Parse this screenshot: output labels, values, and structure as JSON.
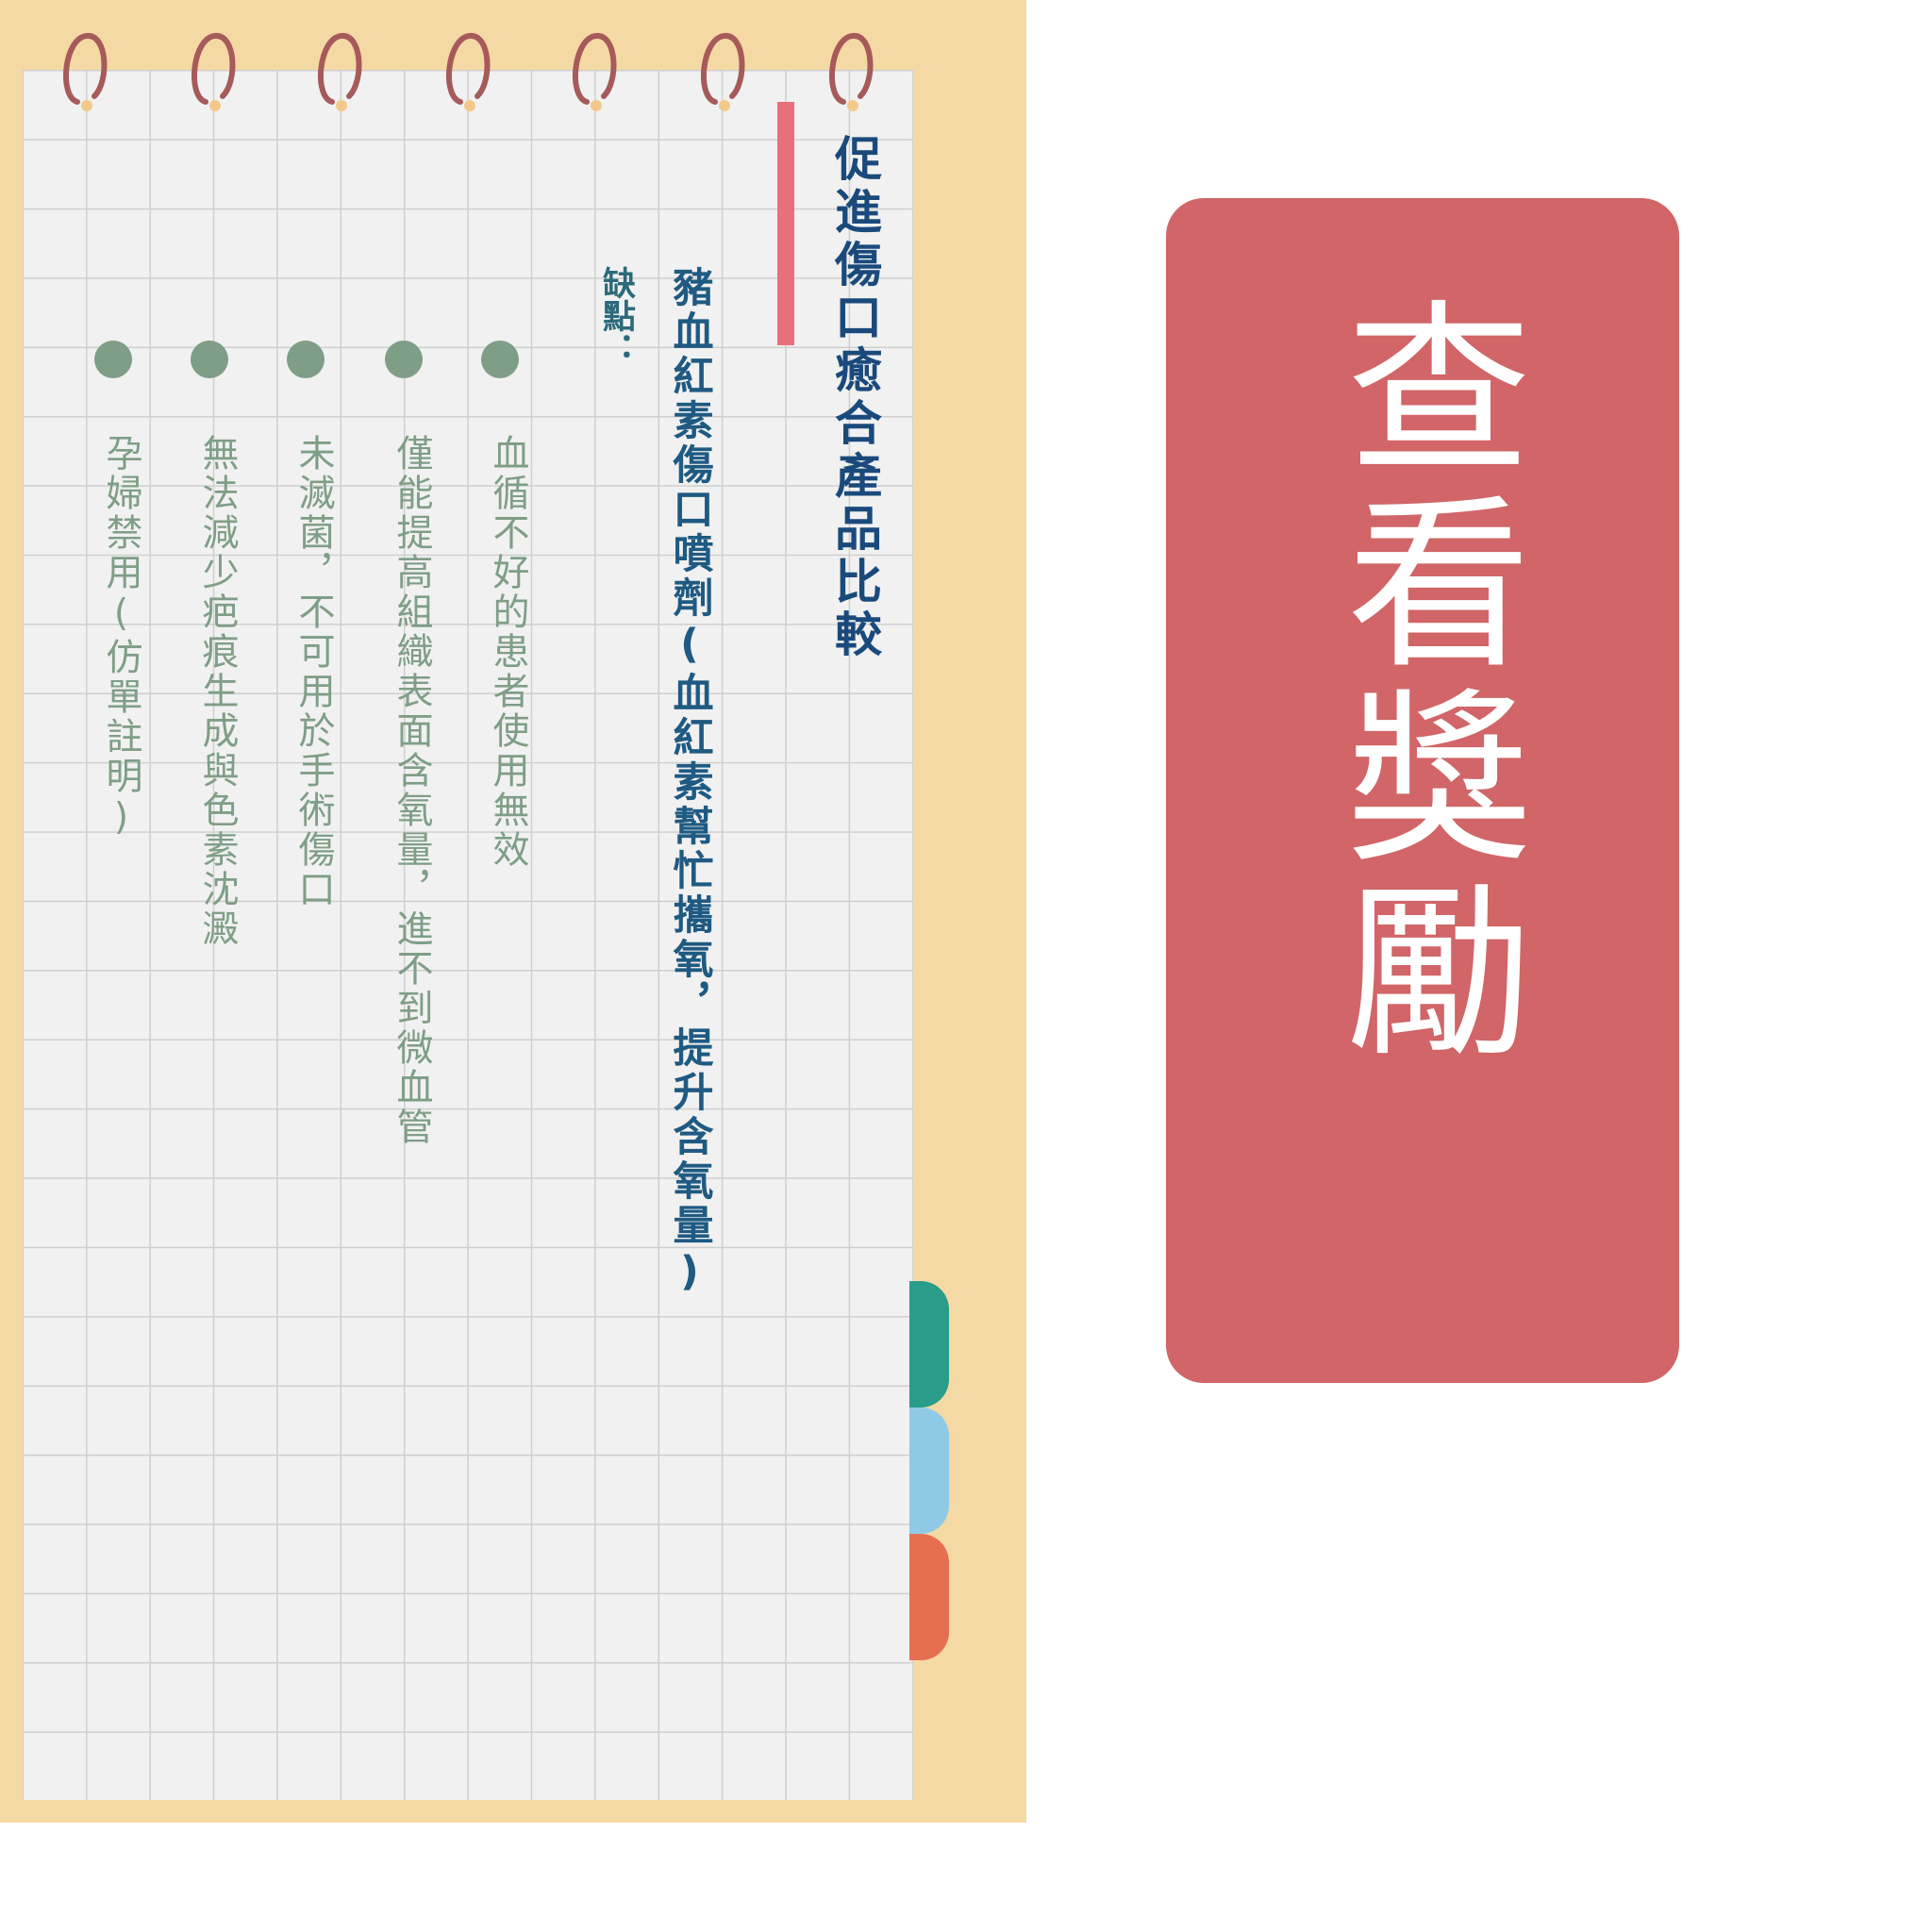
{
  "colors": {
    "backing": "#f5d9a4",
    "paper": "#f1f1f1",
    "title": "#1a4a7c",
    "bullet": "#7f9e86",
    "accent_bar": "#e8707a",
    "cta_card": "#d16567",
    "tab_green": "#2a9d8a",
    "tab_blue": "#8ecae6",
    "tab_orange": "#e76f51",
    "ring": "#a65a5a"
  },
  "notebook": {
    "title": "促進傷口癒合產品比較",
    "product": "豬血紅素傷口噴劑(血紅素幫忙攜氧，提升含氧量)",
    "cons_label": "缺點：",
    "cons": [
      "血循不好的患者使用無效",
      "僅能提高組織表面含氧量，進不到微血管",
      "未滅菌，不可用於手術傷口",
      "無法減少疤痕生成與色素沈澱",
      "孕婦禁用(仿單註明)"
    ]
  },
  "cta": {
    "label": "查看獎勵"
  }
}
